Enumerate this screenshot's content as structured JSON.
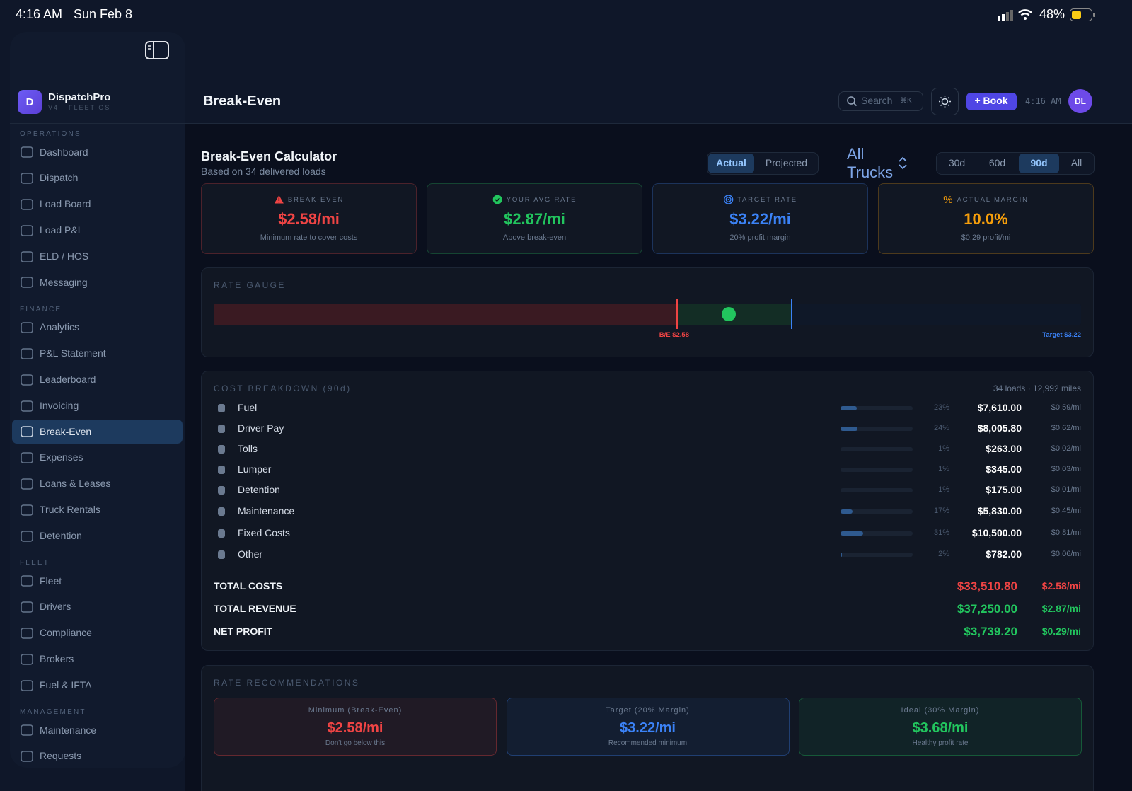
{
  "status_bar": {
    "time": "4:16 AM",
    "date": "Sun Feb 8",
    "battery": "48%"
  },
  "sidebar": {
    "logo": "D",
    "app_name": "DispatchPro",
    "version": "V4 · FLEET OS",
    "sections": [
      {
        "title": "OPERATIONS",
        "items": [
          {
            "label": "Dashboard"
          },
          {
            "label": "Dispatch"
          },
          {
            "label": "Load Board"
          },
          {
            "label": "Load P&L"
          },
          {
            "label": "ELD / HOS"
          },
          {
            "label": "Messaging"
          }
        ]
      },
      {
        "title": "FINANCE",
        "items": [
          {
            "label": "Analytics"
          },
          {
            "label": "P&L Statement"
          },
          {
            "label": "Leaderboard"
          },
          {
            "label": "Invoicing"
          },
          {
            "label": "Break-Even",
            "active": true
          },
          {
            "label": "Expenses"
          },
          {
            "label": "Loans & Leases"
          },
          {
            "label": "Truck Rentals"
          },
          {
            "label": "Detention"
          }
        ]
      },
      {
        "title": "FLEET",
        "items": [
          {
            "label": "Fleet"
          },
          {
            "label": "Drivers"
          },
          {
            "label": "Compliance"
          },
          {
            "label": "Brokers"
          },
          {
            "label": "Fuel & IFTA"
          }
        ]
      },
      {
        "title": "MANAGEMENT",
        "items": [
          {
            "label": "Maintenance"
          },
          {
            "label": "Requests"
          }
        ]
      }
    ]
  },
  "header": {
    "title": "Break-Even",
    "search": "Search",
    "shortcut": "⌘K",
    "book": "+ Book",
    "time": "4:16 AM",
    "avatar": "DL"
  },
  "calculator": {
    "title": "Break-Even Calculator",
    "subtitle": "Based on 34 delivered loads",
    "modes": [
      {
        "label": "Actual",
        "active": true
      },
      {
        "label": "Projected"
      }
    ],
    "truck_filter": "All Trucks",
    "periods": [
      {
        "label": "30d"
      },
      {
        "label": "60d"
      },
      {
        "label": "90d",
        "active": true
      },
      {
        "label": "All"
      }
    ]
  },
  "cards": [
    {
      "label": "BREAK-EVEN",
      "value": "$2.58/mi",
      "note": "Minimum rate to cover costs",
      "color": "#ef4444"
    },
    {
      "label": "YOUR AVG RATE",
      "value": "$2.87/mi",
      "note": "Above break-even",
      "color": "#22c55e"
    },
    {
      "label": "TARGET RATE",
      "value": "$3.22/mi",
      "note": "20% profit margin",
      "color": "#3b82f6"
    },
    {
      "label": "ACTUAL MARGIN",
      "symbol": "%",
      "value": "10.0%",
      "note": "$0.29 profit/mi",
      "color": "#f59e0b"
    }
  ],
  "gauge": {
    "title": "RATE GAUGE",
    "break_even": {
      "value": 2.58,
      "label": "B/E $2.58"
    },
    "avg_rate": 2.87,
    "target": {
      "value": 3.22,
      "label": "Target $3.22"
    }
  },
  "costs": {
    "title": "COST BREAKDOWN (90d)",
    "meta": "34 loads · 12,992 miles",
    "rows": [
      {
        "name": "Fuel",
        "share": {
          "value": 23,
          "label": "23%"
        },
        "amount": "$7,610.00",
        "per_mile": "$0.59/mi"
      },
      {
        "name": "Driver Pay",
        "share": {
          "value": 24,
          "label": "24%"
        },
        "amount": "$8,005.80",
        "per_mile": "$0.62/mi"
      },
      {
        "name": "Tolls",
        "share": {
          "value": 1,
          "label": "1%"
        },
        "amount": "$263.00",
        "per_mile": "$0.02/mi"
      },
      {
        "name": "Lumper",
        "share": {
          "value": 1,
          "label": "1%"
        },
        "amount": "$345.00",
        "per_mile": "$0.03/mi"
      },
      {
        "name": "Detention",
        "share": {
          "value": 1,
          "label": "1%"
        },
        "amount": "$175.00",
        "per_mile": "$0.01/mi"
      },
      {
        "name": "Maintenance",
        "share": {
          "value": 17,
          "label": "17%"
        },
        "amount": "$5,830.00",
        "per_mile": "$0.45/mi"
      },
      {
        "name": "Fixed Costs",
        "share": {
          "value": 31,
          "label": "31%"
        },
        "amount": "$10,500.00",
        "per_mile": "$0.81/mi"
      },
      {
        "name": "Other",
        "share": {
          "value": 2,
          "label": "2%"
        },
        "amount": "$782.00",
        "per_mile": "$0.06/mi"
      }
    ],
    "totals": [
      {
        "label": "TOTAL COSTS",
        "amount": "$33,510.80",
        "per_mile": "$2.58/mi",
        "color": "#ef4444"
      },
      {
        "label": "TOTAL REVENUE",
        "amount": "$37,250.00",
        "per_mile": "$2.87/mi",
        "color": "#22c55e"
      },
      {
        "label": "NET PROFIT",
        "amount": "$3,739.20",
        "per_mile": "$0.29/mi",
        "color": "#22c55e"
      }
    ]
  },
  "recommendations": {
    "title": "RATE RECOMMENDATIONS",
    "cards": [
      {
        "title": "Minimum (Break-Even)",
        "value": "$2.58/mi",
        "note": "Don't go below this",
        "color": "#ef4444"
      },
      {
        "title": "Target (20% Margin)",
        "value": "$3.22/mi",
        "note": "Recommended minimum",
        "color": "#3b82f6"
      },
      {
        "title": "Ideal (30% Margin)",
        "value": "$3.68/mi",
        "note": "Healthy profit rate",
        "color": "#22c55e"
      }
    ]
  }
}
